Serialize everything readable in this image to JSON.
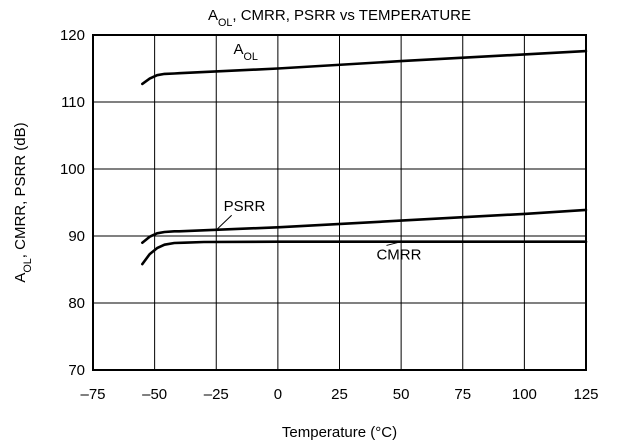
{
  "chart_data": {
    "type": "line",
    "title": {
      "parts": [
        {
          "text": "A",
          "sub": false
        },
        {
          "text": "OL",
          "sub": true
        },
        {
          "text": ", CMRR, PSRR vs TEMPERATURE",
          "sub": false
        }
      ]
    },
    "xlabel": "Temperature (°C)",
    "ylabel": {
      "parts": [
        {
          "text": "A",
          "sub": false
        },
        {
          "text": "OL",
          "sub": true
        },
        {
          "text": ", CMRR, PSRR (dB)",
          "sub": false
        }
      ]
    },
    "xlim": [
      -75,
      125
    ],
    "ylim": [
      70,
      120
    ],
    "xticks": [
      -75,
      -50,
      -25,
      0,
      25,
      50,
      75,
      100,
      125
    ],
    "xtick_labels": [
      "–75",
      "–50",
      "–25",
      "0",
      "25",
      "50",
      "75",
      "100",
      "125"
    ],
    "yticks": [
      70,
      80,
      90,
      100,
      110,
      120
    ],
    "ytick_labels": [
      "70",
      "80",
      "90",
      "100",
      "110",
      "120"
    ],
    "grid": true,
    "legend": "none",
    "series": [
      {
        "name_parts": [
          {
            "text": "A",
            "sub": false
          },
          {
            "text": "OL",
            "sub": true
          }
        ],
        "x": [
          -55,
          -52,
          -49,
          -46,
          -42,
          -40,
          0,
          50,
          100,
          125
        ],
        "y": [
          112.7,
          113.5,
          114.0,
          114.2,
          114.25,
          114.3,
          115.0,
          116.1,
          117.1,
          117.6
        ]
      },
      {
        "name_parts": [
          {
            "text": "PSRR",
            "sub": false
          }
        ],
        "x": [
          -55,
          -52,
          -49,
          -46,
          -42,
          -40,
          0,
          50,
          100,
          125
        ],
        "y": [
          89.0,
          89.9,
          90.4,
          90.6,
          90.7,
          90.7,
          91.3,
          92.3,
          93.3,
          93.9
        ],
        "callout_to": [
          -25,
          90.9
        ]
      },
      {
        "name_parts": [
          {
            "text": "CMRR",
            "sub": false
          }
        ],
        "x": [
          -55,
          -52,
          -49,
          -46,
          -42,
          -38,
          -30,
          0,
          50,
          100,
          125
        ],
        "y": [
          85.8,
          87.3,
          88.2,
          88.7,
          88.95,
          89.0,
          89.1,
          89.15,
          89.15,
          89.15,
          89.15
        ],
        "callout_to": [
          50,
          89.15
        ]
      }
    ]
  }
}
